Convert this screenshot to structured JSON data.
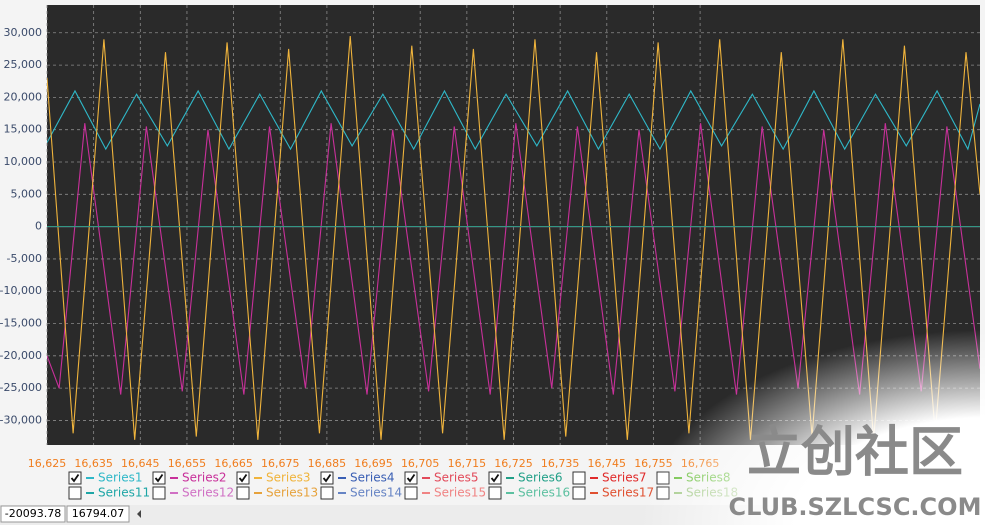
{
  "chart_data": {
    "type": "line",
    "xlim": [
      16625,
      16825
    ],
    "ylim": [
      -33800,
      34300
    ],
    "grid": true,
    "xticks": [
      {
        "value": 16625,
        "label": "16,625"
      },
      {
        "value": 16635,
        "label": "16,635"
      },
      {
        "value": 16645,
        "label": "16,645"
      },
      {
        "value": 16655,
        "label": "16,655"
      },
      {
        "value": 16665,
        "label": "16,665"
      },
      {
        "value": 16675,
        "label": "16,675"
      },
      {
        "value": 16685,
        "label": "16,685"
      },
      {
        "value": 16695,
        "label": "16,695"
      },
      {
        "value": 16705,
        "label": "16,705"
      },
      {
        "value": 16715,
        "label": "16,715"
      },
      {
        "value": 16725,
        "label": "16,725"
      },
      {
        "value": 16735,
        "label": "16,735"
      },
      {
        "value": 16745,
        "label": "16,745"
      },
      {
        "value": 16755,
        "label": "16,755"
      },
      {
        "value": 16765,
        "label": "16,765"
      }
    ],
    "yticks": [
      {
        "value": 30000,
        "label": "30,000"
      },
      {
        "value": 25000,
        "label": "25,000"
      },
      {
        "value": 20000,
        "label": "20,000"
      },
      {
        "value": 15000,
        "label": "15,000"
      },
      {
        "value": 10000,
        "label": "10,000"
      },
      {
        "value": 5000,
        "label": "5,000"
      },
      0,
      {
        "value": -5000,
        "label": "-5,000"
      },
      {
        "value": -10000,
        "label": "-10,000"
      },
      {
        "value": -15000,
        "label": "-15,000"
      },
      {
        "value": -20000,
        "label": "-20,000"
      },
      {
        "value": -25000,
        "label": "-25,000"
      },
      {
        "value": -30000,
        "label": "-30,000"
      }
    ],
    "series": [
      {
        "name": "Series1",
        "color": "#2fb8c8",
        "checked": true,
        "x": [
          16625,
          16631,
          16637.6,
          16644.2,
          16650.8,
          16657.4,
          16664,
          16670.6,
          16677.2,
          16683.8,
          16690.4,
          16697,
          16703.6,
          16710.2,
          16716.8,
          16723.4,
          16730,
          16736.6,
          16743.2,
          16749.8,
          16756.4,
          16763,
          16769.6,
          16776.2,
          16782.8,
          16789.4,
          16796,
          16802.6,
          16809.2,
          16815.8,
          16822.4,
          16825
        ],
        "values": [
          13000,
          21000,
          12000,
          20500,
          12500,
          21000,
          12000,
          20500,
          12000,
          21000,
          12500,
          20500,
          12000,
          21000,
          12000,
          20500,
          12500,
          21000,
          12000,
          20500,
          12000,
          21000,
          12500,
          20500,
          12000,
          21000,
          12000,
          20500,
          12500,
          21000,
          12000,
          19000
        ]
      },
      {
        "name": "Series2",
        "color": "#c8309a",
        "checked": true,
        "x": [
          16625,
          16627.6,
          16633.1,
          16640.8,
          16646.3,
          16654,
          16659.5,
          16667.2,
          16672.7,
          16680.4,
          16685.9,
          16693.6,
          16699.1,
          16706.8,
          16712.3,
          16720,
          16725.5,
          16733.2,
          16738.7,
          16746.4,
          16751.9,
          16759.6,
          16765.1,
          16772.8,
          16778.3,
          16786,
          16791.5,
          16799.2,
          16804.7,
          16812.4,
          16817.9,
          16825
        ],
        "values": [
          -20000,
          -25000,
          16000,
          -26000,
          15500,
          -25500,
          15000,
          -26000,
          15500,
          -25000,
          16000,
          -26000,
          15000,
          -25500,
          15500,
          -26000,
          16000,
          -25000,
          15500,
          -26000,
          15000,
          -25500,
          16000,
          -26000,
          15500,
          -25000,
          15000,
          -26000,
          16000,
          -25500,
          15500,
          -22000
        ]
      },
      {
        "name": "Series3",
        "color": "#f0b43c",
        "checked": true,
        "x": [
          16625,
          16630.6,
          16637.2,
          16643.8,
          16650.4,
          16657,
          16663.6,
          16670.2,
          16676.8,
          16683.4,
          16690,
          16696.6,
          16703.2,
          16709.8,
          16716.4,
          16723,
          16729.6,
          16736.2,
          16742.8,
          16749.4,
          16756,
          16762.6,
          16769.2,
          16775.8,
          16782.4,
          16789,
          16795.6,
          16802.2,
          16808.8,
          16815.4,
          16822,
          16825
        ],
        "values": [
          23000,
          -32000,
          29000,
          -33000,
          27000,
          -32500,
          28500,
          -33000,
          27500,
          -32000,
          29500,
          -33000,
          28000,
          -32000,
          27500,
          -33000,
          29000,
          -32500,
          27000,
          -33000,
          28500,
          -32000,
          29000,
          -33000,
          27000,
          -32500,
          29000,
          -33000,
          28000,
          -32000,
          27000,
          5000
        ]
      },
      {
        "name": "Series4",
        "color": "#3a5fb4",
        "checked": true,
        "x": [
          16625,
          16825
        ],
        "values": [
          0,
          0
        ]
      },
      {
        "name": "Series5",
        "color": "#e24a5a",
        "checked": true,
        "x": [
          16625,
          16825
        ],
        "values": [
          0,
          0
        ]
      },
      {
        "name": "Series6",
        "color": "#22a088",
        "checked": true,
        "x": [
          16625,
          16825
        ],
        "values": [
          0,
          0
        ]
      },
      {
        "name": "Series7",
        "color": "#e02a2a",
        "checked": false,
        "x": [],
        "values": []
      },
      {
        "name": "Series8",
        "color": "#6cc040",
        "checked": false,
        "x": [],
        "values": []
      },
      {
        "name": "Series11",
        "color": "#1ea6a6",
        "checked": false,
        "x": [],
        "values": []
      },
      {
        "name": "Series12",
        "color": "#d070c4",
        "checked": false,
        "x": [],
        "values": []
      },
      {
        "name": "Series13",
        "color": "#e6a23c",
        "checked": false,
        "x": [],
        "values": []
      },
      {
        "name": "Series14",
        "color": "#6684c4",
        "checked": false,
        "x": [],
        "values": []
      },
      {
        "name": "Series15",
        "color": "#f08484",
        "checked": false,
        "x": [],
        "values": []
      },
      {
        "name": "Series16",
        "color": "#5cc0a0",
        "checked": false,
        "x": [],
        "values": []
      },
      {
        "name": "Series17",
        "color": "#e05030",
        "checked": false,
        "x": [],
        "values": []
      },
      {
        "name": "Series18",
        "color": "#a0c884",
        "checked": false,
        "x": [],
        "values": []
      }
    ]
  },
  "status": {
    "cursor_y": "-20093.78",
    "cursor_x": "16794.07"
  },
  "watermark": {
    "title": "立创社区",
    "url": "CLUB.SZLCSC.COM"
  }
}
